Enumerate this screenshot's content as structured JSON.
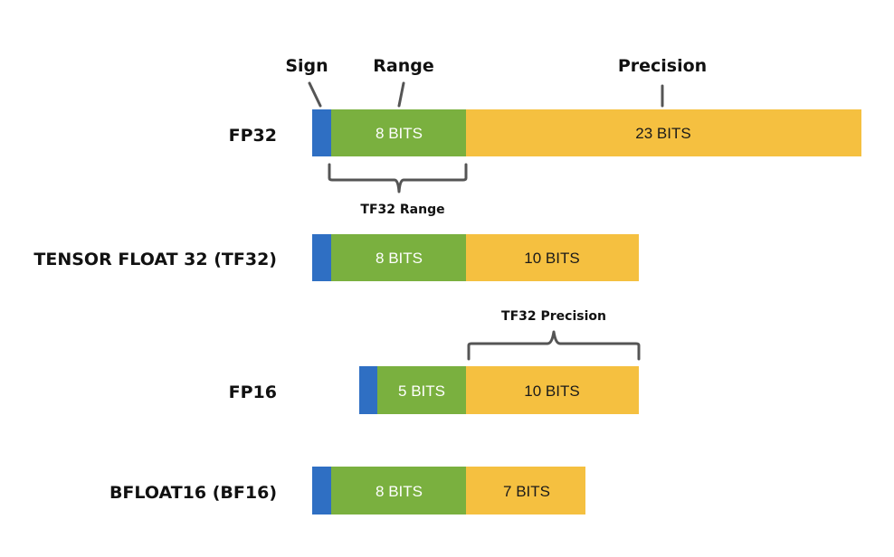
{
  "headers": {
    "sign": "Sign",
    "range": "Range",
    "precision": "Precision"
  },
  "colors": {
    "sign": "#2f6fc3",
    "exponent": "#7ab03f",
    "mantissa": "#f5c040",
    "line": "#555555",
    "text": "#111111"
  },
  "formats": [
    {
      "name": "FP32",
      "sign_bits": 1,
      "exponent_label": "8 BITS",
      "mantissa_label": "23 BITS"
    },
    {
      "name": "TENSOR FLOAT 32 (TF32)",
      "sign_bits": 1,
      "exponent_label": "8 BITS",
      "mantissa_label": "10 BITS"
    },
    {
      "name": "FP16",
      "sign_bits": 1,
      "exponent_label": "5 BITS",
      "mantissa_label": "10 BITS"
    },
    {
      "name": "BFLOAT16 (BF16)",
      "sign_bits": 1,
      "exponent_label": "8 BITS",
      "mantissa_label": "7 BITS"
    }
  ],
  "annotations": {
    "tf32_range": "TF32 Range",
    "tf32_precision": "TF32 Precision"
  }
}
